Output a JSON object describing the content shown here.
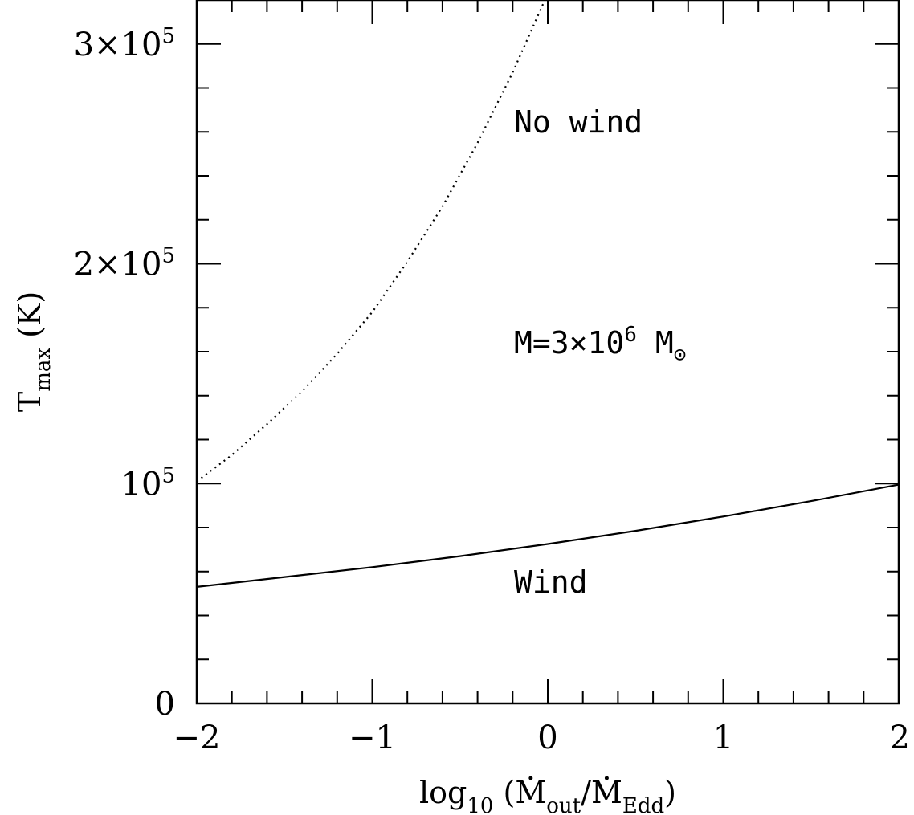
{
  "chart_data": {
    "type": "line",
    "xlim": [
      -2,
      2
    ],
    "ylim": [
      0,
      320000
    ],
    "x_ticks": [
      {
        "value": -2,
        "label": "−2"
      },
      {
        "value": -1,
        "label": "−1"
      },
      {
        "value": 0,
        "label": "0"
      },
      {
        "value": 1,
        "label": "1"
      },
      {
        "value": 2,
        "label": "2"
      }
    ],
    "y_ticks": [
      {
        "value": 0,
        "base": "0",
        "exp": ""
      },
      {
        "value": 100000,
        "base": "10",
        "exp": "5"
      },
      {
        "value": 200000,
        "base": "2×10",
        "exp": "5"
      },
      {
        "value": 300000,
        "base": "3×10",
        "exp": "5"
      }
    ],
    "x_minor_step": 0.2,
    "y_minor_step": 20000,
    "xlabel": {
      "prefix": "log",
      "prefix_sub": "10",
      "open": " (",
      "num": "M",
      "num_sub": "out",
      "slash": "/",
      "den": "M",
      "den_sub": "Edd",
      "close": ")"
    },
    "ylabel": {
      "main": "T",
      "sub": "max",
      "unit": " (K)"
    },
    "annotations": {
      "no_wind": "No wind",
      "mass": {
        "prefix": "M=3×10",
        "exp": "6",
        "suffix": " M",
        "sub": "⊙"
      },
      "wind": "Wind"
    },
    "series": [
      {
        "style": "dotted",
        "x": [
          -2.0,
          -1.8,
          -1.6,
          -1.4,
          -1.2,
          -1.0,
          -0.8,
          -0.6,
          -0.4,
          -0.2,
          0.0
        ],
        "y": [
          101000,
          113000,
          127000,
          142000,
          159000,
          178000,
          201000,
          226000,
          255000,
          287000,
          323000
        ]
      },
      {
        "style": "solid",
        "x": [
          -2.0,
          -1.5,
          -1.0,
          -0.5,
          0.0,
          0.5,
          1.0,
          1.5,
          2.0
        ],
        "y": [
          53000,
          57500,
          62000,
          67000,
          72500,
          78500,
          85000,
          92000,
          99500
        ]
      }
    ]
  }
}
